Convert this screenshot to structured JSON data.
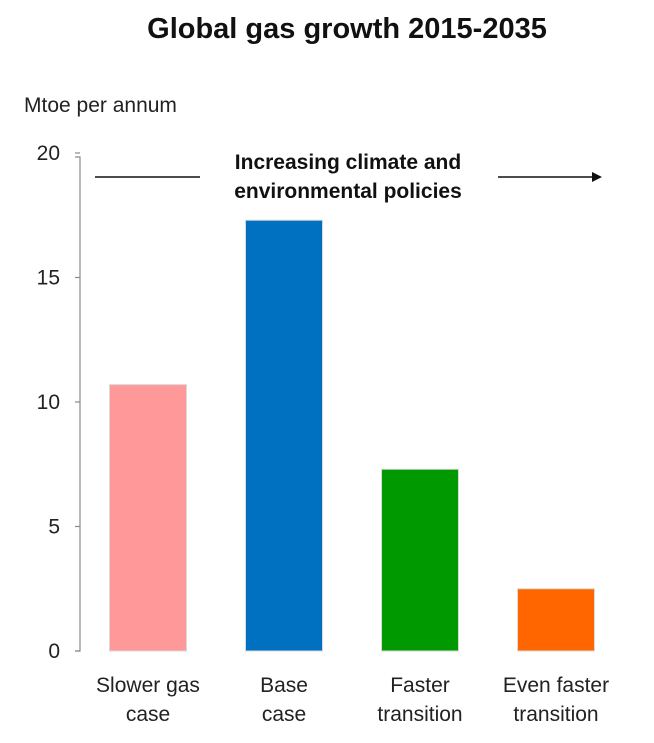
{
  "chart_data": {
    "type": "bar",
    "title": "Global gas growth 2015-2035",
    "ylabel": "Mtoe per annum",
    "xlabel": "",
    "ylim": [
      0,
      20
    ],
    "yticks": [
      0,
      5,
      10,
      15,
      20
    ],
    "categories": [
      [
        "Slower gas",
        "case"
      ],
      [
        "Base",
        "case"
      ],
      [
        "Faster",
        "transition"
      ],
      [
        "Even faster",
        "transition"
      ]
    ],
    "values": [
      10.7,
      17.3,
      7.3,
      2.5
    ],
    "colors": [
      "#ff9999",
      "#0070c0",
      "#009900",
      "#ff6600"
    ],
    "annotation": [
      "Increasing climate and",
      "environmental policies"
    ],
    "grid": false,
    "legend": "none"
  }
}
